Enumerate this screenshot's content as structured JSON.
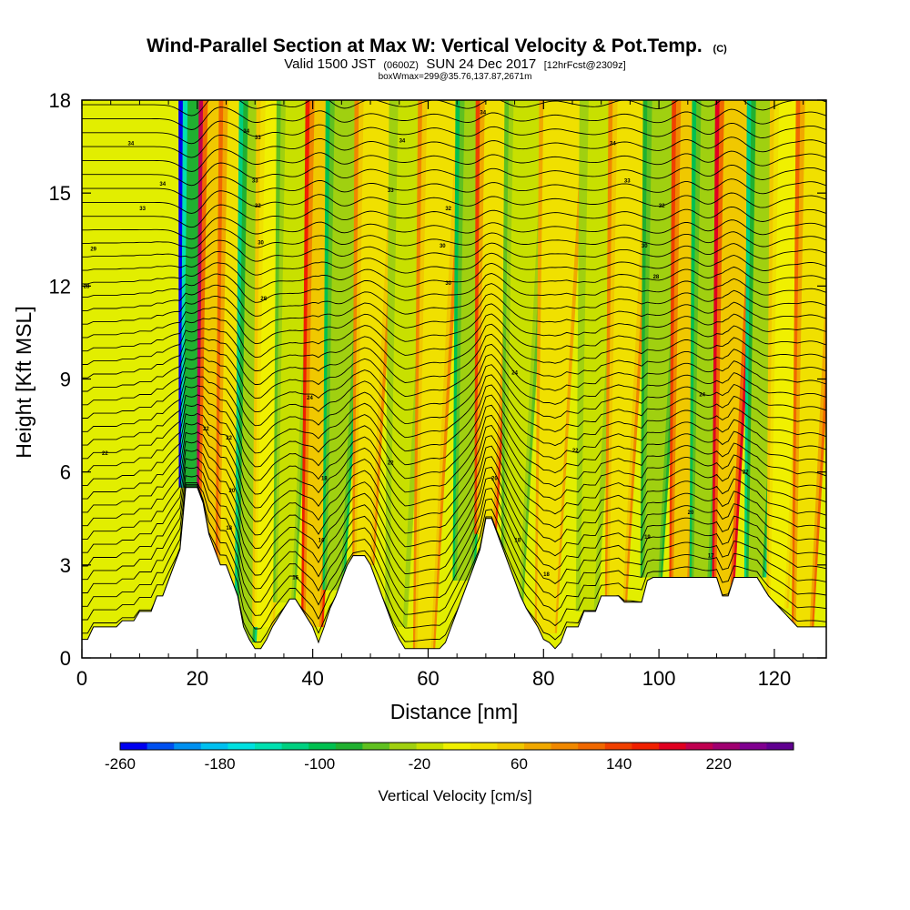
{
  "chart_data": {
    "type": "heatmap",
    "title_main": "Wind-Parallel Section at Max W: Vertical Velocity & Pot.Temp.",
    "title_tag": "(C)",
    "subtitle_parts": [
      "Valid 1500 JST",
      "(0600Z)",
      "SUN 24 Dec 2017",
      "[12hrFcst@2309z]"
    ],
    "subtitle2": "boxWmax=299@35.76,137.87,2671m",
    "xlabel": "Distance [nm]",
    "ylabel": "Height [Kft MSL]",
    "xlim": [
      0,
      129
    ],
    "ylim": [
      0,
      18
    ],
    "x_ticks": [
      "0",
      "20",
      "40",
      "60",
      "80",
      "100",
      "120"
    ],
    "y_ticks": [
      "0",
      "3",
      "6",
      "9",
      "12",
      "15",
      "18"
    ],
    "colorbar": {
      "label": "Vertical Velocity [cm/s]",
      "range": [
        -260,
        280
      ],
      "tick_labels": [
        "-260",
        "-180",
        "-100",
        "-20",
        "60",
        "140",
        "220"
      ],
      "colors": [
        "#0000f0",
        "#0050f0",
        "#0090f0",
        "#00c0f0",
        "#00e0e0",
        "#00e0b0",
        "#00d080",
        "#00c050",
        "#20b030",
        "#60c020",
        "#a0d010",
        "#c8e000",
        "#f0f000",
        "#f0e000",
        "#f0c800",
        "#f0a800",
        "#f08800",
        "#f06800",
        "#f04000",
        "#f02000",
        "#e00020",
        "#c00050",
        "#a00070",
        "#800090",
        "#600090"
      ]
    },
    "terrain_profile": {
      "x": [
        0,
        1,
        2,
        3,
        4,
        5,
        6,
        7,
        8,
        9,
        10,
        11,
        12,
        13,
        14,
        15,
        16,
        17,
        18,
        19,
        20,
        21,
        22,
        23,
        24,
        25,
        26,
        27,
        28,
        29,
        30,
        31,
        32,
        33,
        34,
        35,
        36,
        37,
        38,
        39,
        40,
        41,
        42,
        43,
        44,
        45,
        46,
        47,
        48,
        49,
        50,
        51,
        52,
        53,
        54,
        55,
        56,
        57,
        58,
        59,
        60,
        61,
        62,
        63,
        64,
        65,
        66,
        67,
        68,
        69,
        70,
        71,
        72,
        73,
        74,
        75,
        76,
        77,
        78,
        79,
        80,
        81,
        82,
        83,
        84,
        85,
        86,
        87,
        88,
        89,
        90,
        91,
        92,
        93,
        94,
        95,
        96,
        97,
        98,
        99,
        100,
        101,
        102,
        103,
        104,
        105,
        106,
        107,
        108,
        109,
        110,
        111,
        112,
        113,
        114,
        115,
        116,
        117,
        118,
        119,
        120,
        121,
        122,
        123,
        124,
        125,
        126,
        127,
        128,
        129
      ],
      "height_kft": [
        0.6,
        0.6,
        1.0,
        1.0,
        1.0,
        1.0,
        1.0,
        1.2,
        1.2,
        1.2,
        1.5,
        1.5,
        1.5,
        2.0,
        2.0,
        2.5,
        3.0,
        3.5,
        5.5,
        5.5,
        5.5,
        5.0,
        4.0,
        3.5,
        3.0,
        3.0,
        2.5,
        2.0,
        1.0,
        0.6,
        0.3,
        0.3,
        0.6,
        1.0,
        1.3,
        1.6,
        1.9,
        1.9,
        1.6,
        1.3,
        1.0,
        0.5,
        1.0,
        1.6,
        2.0,
        2.5,
        3.0,
        3.3,
        3.3,
        3.3,
        3.0,
        2.5,
        2.0,
        1.5,
        1.0,
        0.6,
        0.3,
        0.3,
        0.3,
        0.3,
        0.3,
        0.3,
        0.3,
        0.5,
        1.0,
        1.5,
        2.0,
        2.5,
        3.0,
        3.5,
        4.5,
        4.5,
        4.0,
        3.5,
        3.0,
        2.5,
        2.0,
        1.6,
        1.3,
        1.0,
        0.6,
        0.5,
        0.3,
        0.5,
        1.0,
        1.0,
        1.0,
        1.5,
        1.5,
        1.5,
        2.0,
        2.0,
        2.0,
        2.0,
        1.8,
        1.8,
        1.8,
        1.8,
        2.5,
        2.6,
        2.6,
        2.6,
        2.6,
        2.6,
        2.6,
        2.6,
        2.6,
        2.6,
        2.6,
        2.6,
        2.6,
        2.0,
        2.0,
        2.6,
        2.6,
        2.6,
        2.6,
        2.6,
        2.3,
        2.0,
        1.8,
        1.6,
        1.4,
        1.2,
        1.0,
        1.0,
        1.0,
        1.0,
        1.0,
        1.0
      ]
    },
    "velocity_bands": [
      {
        "x_center": 19.5,
        "w_cm_s": -240,
        "y_bottom_kft": 5.5
      },
      {
        "x_center": 23.0,
        "w_cm_s": 210,
        "y_bottom_kft": 3.0
      },
      {
        "x_center": 26.5,
        "w_cm_s": 110,
        "y_bottom_kft": 1.5
      },
      {
        "x_center": 30.0,
        "w_cm_s": -110,
        "y_bottom_kft": 0.5
      },
      {
        "x_center": 33.0,
        "w_cm_s": 50,
        "y_bottom_kft": 1.0
      },
      {
        "x_center": 36.5,
        "w_cm_s": -60,
        "y_bottom_kft": 1.8
      },
      {
        "x_center": 41.5,
        "w_cm_s": 170,
        "y_bottom_kft": 1.0
      },
      {
        "x_center": 45.0,
        "w_cm_s": -100,
        "y_bottom_kft": 2.2
      },
      {
        "x_center": 50.0,
        "w_cm_s": 100,
        "y_bottom_kft": 3.0
      },
      {
        "x_center": 56.0,
        "w_cm_s": -40,
        "y_bottom_kft": 1.0
      },
      {
        "x_center": 61.0,
        "w_cm_s": 90,
        "y_bottom_kft": 0.3
      },
      {
        "x_center": 67.5,
        "w_cm_s": -90,
        "y_bottom_kft": 2.5
      },
      {
        "x_center": 71.0,
        "w_cm_s": 130,
        "y_bottom_kft": 4.0
      },
      {
        "x_center": 76.0,
        "w_cm_s": -50,
        "y_bottom_kft": 1.5
      },
      {
        "x_center": 82.0,
        "w_cm_s": 70,
        "y_bottom_kft": 0.8
      },
      {
        "x_center": 89.0,
        "w_cm_s": -40,
        "y_bottom_kft": 1.5
      },
      {
        "x_center": 94.0,
        "w_cm_s": 90,
        "y_bottom_kft": 1.8
      },
      {
        "x_center": 100.0,
        "w_cm_s": -80,
        "y_bottom_kft": 2.6
      },
      {
        "x_center": 105.0,
        "w_cm_s": 150,
        "y_bottom_kft": 2.6
      },
      {
        "x_center": 108.5,
        "w_cm_s": -90,
        "y_bottom_kft": 2.6
      },
      {
        "x_center": 112.5,
        "w_cm_s": 190,
        "y_bottom_kft": 2.0
      },
      {
        "x_center": 118.0,
        "w_cm_s": -110,
        "y_bottom_kft": 2.6
      },
      {
        "x_center": 122.0,
        "w_cm_s": 60,
        "y_bottom_kft": 1.6
      },
      {
        "x_center": 126.5,
        "w_cm_s": 120,
        "y_bottom_kft": 1.0
      }
    ],
    "theta_contour_labels": [
      {
        "text": "34",
        "x": 8.5,
        "y_kft": 16.6
      },
      {
        "text": "34",
        "x": 14.0,
        "y_kft": 15.3
      },
      {
        "text": "33",
        "x": 10.5,
        "y_kft": 14.5
      },
      {
        "text": "29",
        "x": 2.0,
        "y_kft": 13.2
      },
      {
        "text": "28",
        "x": 0.8,
        "y_kft": 12.0
      },
      {
        "text": "22",
        "x": 4.0,
        "y_kft": 6.6
      },
      {
        "text": "34",
        "x": 28.5,
        "y_kft": 17.0
      },
      {
        "text": "33",
        "x": 30.5,
        "y_kft": 16.8
      },
      {
        "text": "33",
        "x": 30.0,
        "y_kft": 15.4
      },
      {
        "text": "32",
        "x": 30.5,
        "y_kft": 14.6
      },
      {
        "text": "30",
        "x": 31.0,
        "y_kft": 13.4
      },
      {
        "text": "28",
        "x": 31.5,
        "y_kft": 11.6
      },
      {
        "text": "24",
        "x": 39.5,
        "y_kft": 8.4
      },
      {
        "text": "22",
        "x": 21.5,
        "y_kft": 7.4
      },
      {
        "text": "22",
        "x": 25.5,
        "y_kft": 7.1
      },
      {
        "text": "20",
        "x": 26.0,
        "y_kft": 5.4
      },
      {
        "text": "18",
        "x": 25.5,
        "y_kft": 4.2
      },
      {
        "text": "18",
        "x": 42.0,
        "y_kft": 5.8
      },
      {
        "text": "16",
        "x": 41.5,
        "y_kft": 3.8
      },
      {
        "text": "16",
        "x": 37.0,
        "y_kft": 2.6
      },
      {
        "text": "34",
        "x": 55.5,
        "y_kft": 16.7
      },
      {
        "text": "33",
        "x": 53.5,
        "y_kft": 15.1
      },
      {
        "text": "32",
        "x": 63.5,
        "y_kft": 14.5
      },
      {
        "text": "30",
        "x": 62.5,
        "y_kft": 13.3
      },
      {
        "text": "30",
        "x": 63.5,
        "y_kft": 12.1
      },
      {
        "text": "22",
        "x": 53.5,
        "y_kft": 6.3
      },
      {
        "text": "34",
        "x": 69.5,
        "y_kft": 17.6
      },
      {
        "text": "24",
        "x": 75.0,
        "y_kft": 9.2
      },
      {
        "text": "20",
        "x": 71.5,
        "y_kft": 5.8
      },
      {
        "text": "18",
        "x": 75.5,
        "y_kft": 3.8
      },
      {
        "text": "18",
        "x": 80.5,
        "y_kft": 2.7
      },
      {
        "text": "22",
        "x": 85.5,
        "y_kft": 6.7
      },
      {
        "text": "34",
        "x": 92.0,
        "y_kft": 16.6
      },
      {
        "text": "33",
        "x": 94.5,
        "y_kft": 15.4
      },
      {
        "text": "32",
        "x": 100.5,
        "y_kft": 14.6
      },
      {
        "text": "30",
        "x": 97.5,
        "y_kft": 13.3
      },
      {
        "text": "28",
        "x": 99.5,
        "y_kft": 12.3
      },
      {
        "text": "24",
        "x": 107.5,
        "y_kft": 8.5
      },
      {
        "text": "22",
        "x": 115.0,
        "y_kft": 6.0
      },
      {
        "text": "20",
        "x": 105.5,
        "y_kft": 4.7
      },
      {
        "text": "19",
        "x": 98.0,
        "y_kft": 3.9
      },
      {
        "text": "17",
        "x": 109.0,
        "y_kft": 3.3
      }
    ],
    "grid": false,
    "legend": "colorbar-bottom"
  }
}
